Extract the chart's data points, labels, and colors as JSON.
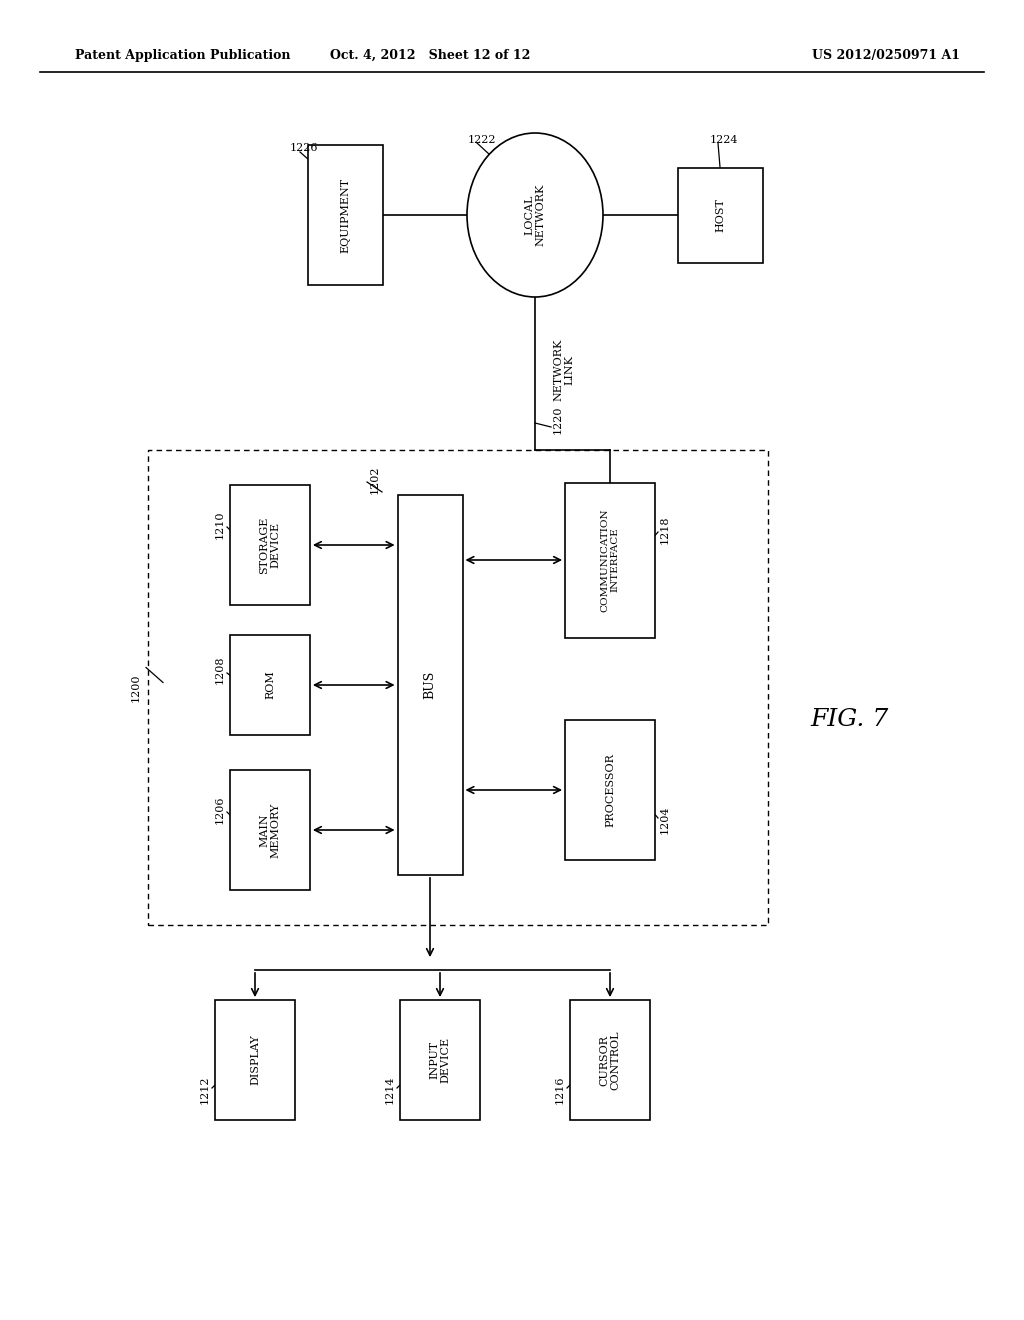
{
  "header_left": "Patent Application Publication",
  "header_mid": "Oct. 4, 2012   Sheet 12 of 12",
  "header_right": "US 2012/0250971 A1",
  "fig_label": "FIG. 7",
  "bg_color": "#ffffff",
  "line_color": "#000000",
  "text_color": "#000000"
}
